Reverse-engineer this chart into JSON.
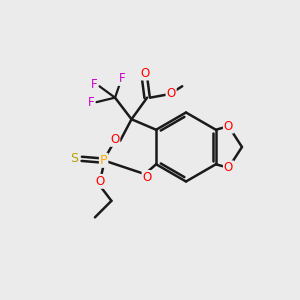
{
  "bg_color": "#ebebeb",
  "bond_color": "#1a1a1a",
  "colors": {
    "O": "#ff0000",
    "F": "#cc00cc",
    "P": "#ffaa00",
    "S": "#b8a000",
    "C": "#1a1a1a"
  },
  "figsize": [
    3.0,
    3.0
  ],
  "dpi": 100
}
